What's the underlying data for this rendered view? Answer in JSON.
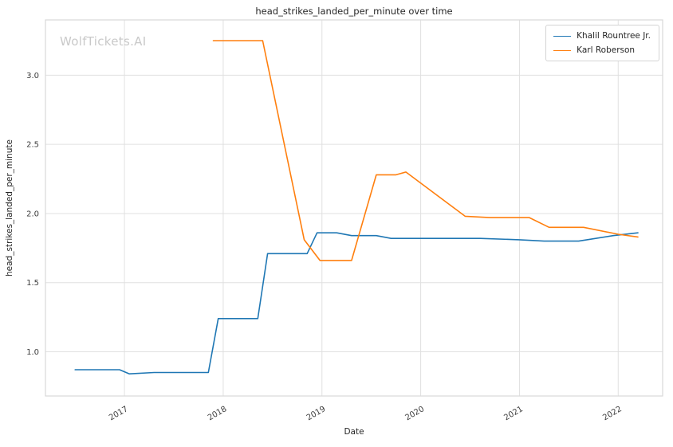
{
  "watermark": "WolfTickets.AI",
  "chart_data": {
    "type": "line",
    "title": "head_strikes_landed_per_minute over time",
    "xlabel": "Date",
    "ylabel": "head_strikes_landed_per_minute",
    "xlim": [
      2016.2,
      2022.45
    ],
    "ylim": [
      0.68,
      3.4
    ],
    "grid": true,
    "legend_position": "upper right",
    "xticks": {
      "values": [
        2017,
        2018,
        2019,
        2020,
        2021,
        2022
      ],
      "labels": [
        "2017",
        "2018",
        "2019",
        "2020",
        "2021",
        "2022"
      ]
    },
    "yticks": {
      "values": [
        1.0,
        1.5,
        2.0,
        2.5,
        3.0
      ],
      "labels": [
        "1.0",
        "1.5",
        "2.0",
        "2.5",
        "3.0"
      ]
    },
    "series": [
      {
        "name": "Khalil Rountree Jr.",
        "color": "#1f77b4",
        "points": [
          [
            2016.5,
            0.87
          ],
          [
            2016.95,
            0.87
          ],
          [
            2017.05,
            0.84
          ],
          [
            2017.3,
            0.85
          ],
          [
            2017.85,
            0.85
          ],
          [
            2017.95,
            1.24
          ],
          [
            2018.35,
            1.24
          ],
          [
            2018.45,
            1.71
          ],
          [
            2018.85,
            1.71
          ],
          [
            2018.95,
            1.86
          ],
          [
            2019.15,
            1.86
          ],
          [
            2019.3,
            1.84
          ],
          [
            2019.55,
            1.84
          ],
          [
            2019.7,
            1.82
          ],
          [
            2020.0,
            1.82
          ],
          [
            2020.6,
            1.82
          ],
          [
            2021.0,
            1.81
          ],
          [
            2021.25,
            1.8
          ],
          [
            2021.6,
            1.8
          ],
          [
            2021.95,
            1.84
          ],
          [
            2022.2,
            1.86
          ]
        ]
      },
      {
        "name": "Karl Roberson",
        "color": "#ff7f0e",
        "points": [
          [
            2017.9,
            3.25
          ],
          [
            2018.4,
            3.25
          ],
          [
            2018.82,
            1.81
          ],
          [
            2018.98,
            1.66
          ],
          [
            2019.3,
            1.66
          ],
          [
            2019.55,
            2.28
          ],
          [
            2019.75,
            2.28
          ],
          [
            2019.85,
            2.3
          ],
          [
            2020.45,
            1.98
          ],
          [
            2020.7,
            1.97
          ],
          [
            2021.1,
            1.97
          ],
          [
            2021.3,
            1.9
          ],
          [
            2021.65,
            1.9
          ],
          [
            2022.0,
            1.85
          ],
          [
            2022.2,
            1.83
          ]
        ]
      }
    ]
  }
}
